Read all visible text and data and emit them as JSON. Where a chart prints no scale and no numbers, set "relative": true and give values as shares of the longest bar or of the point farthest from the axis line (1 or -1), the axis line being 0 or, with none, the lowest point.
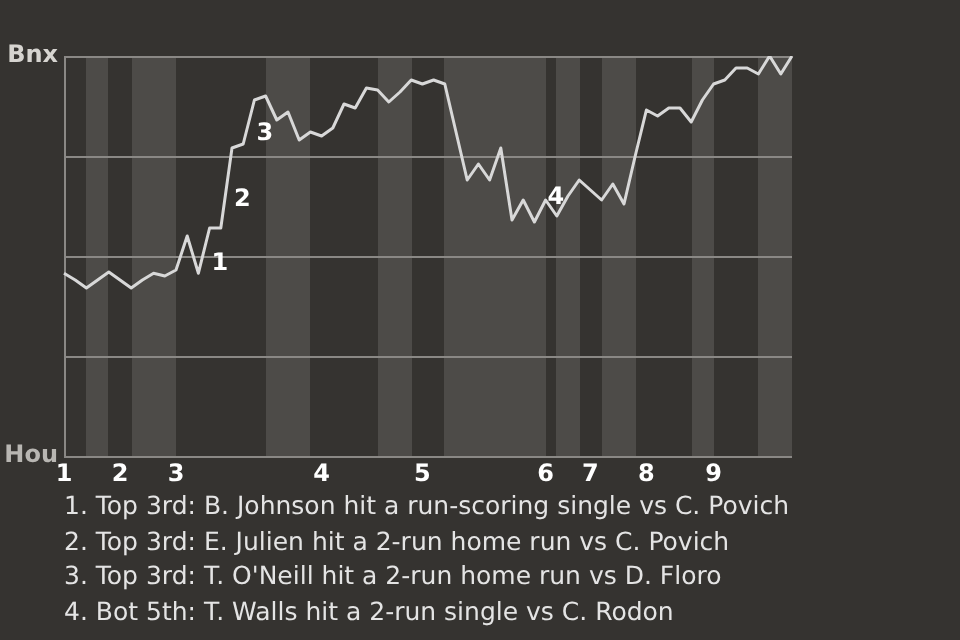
{
  "chart_data": {
    "type": "line",
    "categories": [
      "1",
      null,
      null,
      null,
      null,
      "2",
      null,
      null,
      null,
      null,
      "3",
      null,
      null,
      null,
      null,
      null,
      null,
      null,
      null,
      null,
      null,
      null,
      null,
      "4",
      null,
      null,
      null,
      null,
      null,
      null,
      null,
      null,
      "5",
      null,
      null,
      null,
      null,
      null,
      null,
      null,
      null,
      null,
      null,
      "6",
      null,
      null,
      null,
      "7",
      null,
      null,
      null,
      null,
      "8",
      null,
      null,
      null,
      null,
      null,
      "9",
      null,
      null,
      null,
      null,
      null,
      null,
      null
    ],
    "series": [
      {
        "color": "#d8d8d8",
        "values": [
          0.457,
          0.44,
          0.42,
          0.44,
          0.46,
          0.44,
          0.42,
          0.44,
          0.457,
          0.45,
          0.465,
          0.55,
          0.457,
          0.57,
          0.57,
          0.77,
          0.78,
          0.89,
          0.9,
          0.84,
          0.86,
          0.79,
          0.81,
          0.8,
          0.82,
          0.88,
          0.87,
          0.92,
          0.915,
          0.885,
          0.91,
          0.94,
          0.93,
          0.94,
          0.93,
          0.81,
          0.69,
          0.73,
          0.69,
          0.77,
          0.59,
          0.64,
          0.585,
          0.64,
          0.6,
          0.65,
          0.69,
          0.665,
          0.64,
          0.68,
          0.63,
          0.75,
          0.865,
          0.85,
          0.87,
          0.87,
          0.835,
          0.89,
          0.93,
          0.94,
          0.97,
          0.97,
          0.955,
          1,
          0.955,
          1
        ]
      }
    ],
    "relative": true,
    "grid": "y",
    "marker": "none",
    "annotations": [
      "Bnx",
      "Hou",
      "1",
      "2",
      "3",
      "4",
      "1. Top 3rd: B. Johnson hit a run-scoring single vs C. Povich",
      "2. Top 3rd: E. Julien hit a 2-run home run vs C. Povich",
      "3. Top 3rd: T. O'Neill hit a 2-run home run vs D. Floro",
      "4. Bot 5th: T. Walls hit a 2-run single vs C. Rodon"
    ]
  }
}
